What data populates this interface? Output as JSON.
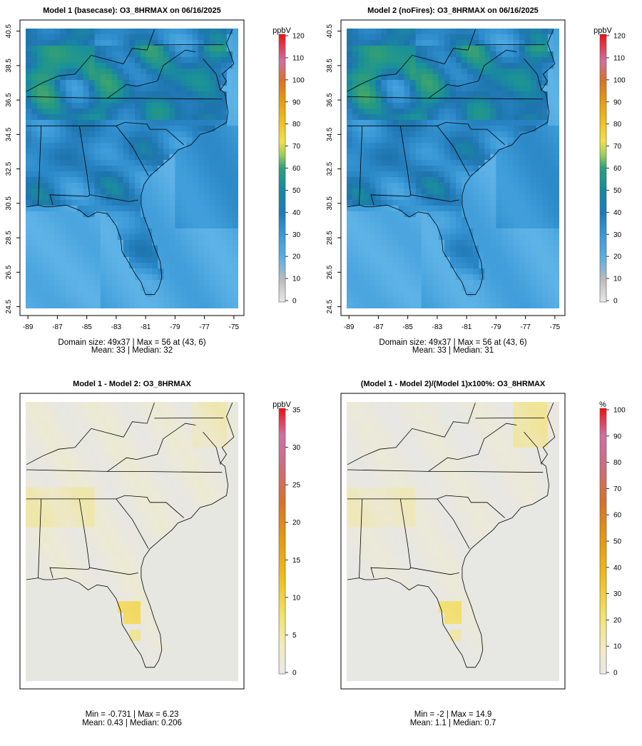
{
  "chart_data": [
    {
      "type": "heatmap",
      "title": "Model 1 (basecase): O3_8HRMAX on 06/16/2025",
      "units": "ppbV",
      "x_ticks": [
        "-89",
        "-87",
        "-85",
        "-83",
        "-81",
        "-79",
        "-77",
        "-75"
      ],
      "y_ticks": [
        "24.5",
        "26.5",
        "28.5",
        "30.5",
        "32.5",
        "34.5",
        "36.5",
        "38.5",
        "40.5"
      ],
      "colorbar_ticks": [
        "0",
        "10",
        "20",
        "30",
        "40",
        "50",
        "60",
        "70",
        "80",
        "90",
        "100",
        "110",
        "120"
      ],
      "colorbar_range": [
        0,
        120
      ],
      "grid_rows": 37,
      "grid_cols": 49,
      "stats_line1": "Domain size: 49x37 | Max = 56 at (43, 6)",
      "stats_line2": "Mean: 33 |  Median: 32",
      "mean": 33,
      "median": 32,
      "max": 56
    },
    {
      "type": "heatmap",
      "title": "Model 2 (noFires): O3_8HRMAX on 06/16/2025",
      "units": "ppbV",
      "x_ticks": [
        "-89",
        "-87",
        "-85",
        "-83",
        "-81",
        "-79",
        "-77",
        "-75"
      ],
      "y_ticks": [
        "24.5",
        "26.5",
        "28.5",
        "30.5",
        "32.5",
        "34.5",
        "36.5",
        "38.5",
        "40.5"
      ],
      "colorbar_ticks": [
        "0",
        "10",
        "20",
        "30",
        "40",
        "50",
        "60",
        "70",
        "80",
        "90",
        "100",
        "110",
        "120"
      ],
      "colorbar_range": [
        0,
        120
      ],
      "grid_rows": 37,
      "grid_cols": 49,
      "stats_line1": "Domain size: 49x37 | Max = 56 at (43, 6)",
      "stats_line2": "Mean: 33 |  Median: 31",
      "mean": 33,
      "median": 31,
      "max": 56
    },
    {
      "type": "heatmap",
      "title": "Model 1 - Model 2: O3_8HRMAX",
      "units": "ppbV",
      "colorbar_ticks": [
        "0",
        "5",
        "10",
        "15",
        "20",
        "25",
        "30",
        "35"
      ],
      "colorbar_range": [
        0,
        35
      ],
      "stats_line1": "Min = -0.731 | Max = 6.23",
      "stats_line2": "Mean: 0.43 |  Median: 0.206",
      "min": -0.731,
      "max": 6.23,
      "mean": 0.43,
      "median": 0.206
    },
    {
      "type": "heatmap",
      "title": "(Model 1 - Model 2)/(Model 1)x100%: O3_8HRMAX",
      "units": "%",
      "colorbar_ticks": [
        "0",
        "10",
        "20",
        "30",
        "40",
        "50",
        "60",
        "70",
        "80",
        "90",
        "100"
      ],
      "colorbar_range": [
        0,
        100
      ],
      "stats_line1": "Min = -2 | Max = 14.9",
      "stats_line2": "Mean: 1.1 |  Median: 0.7",
      "min": -2,
      "max": 14.9,
      "mean": 1.1,
      "median": 0.7
    }
  ],
  "colors": {
    "ocean": "#55aee4",
    "land_mid": "#2f86c4",
    "land_dark": "#1f6fae",
    "high": "#3a9a74",
    "peak": "#4aa766",
    "diff_bg": "#e6e6e6",
    "diff_land": "#ece9d8",
    "diff_hot": "#f2e27a",
    "outline": "#000000"
  }
}
